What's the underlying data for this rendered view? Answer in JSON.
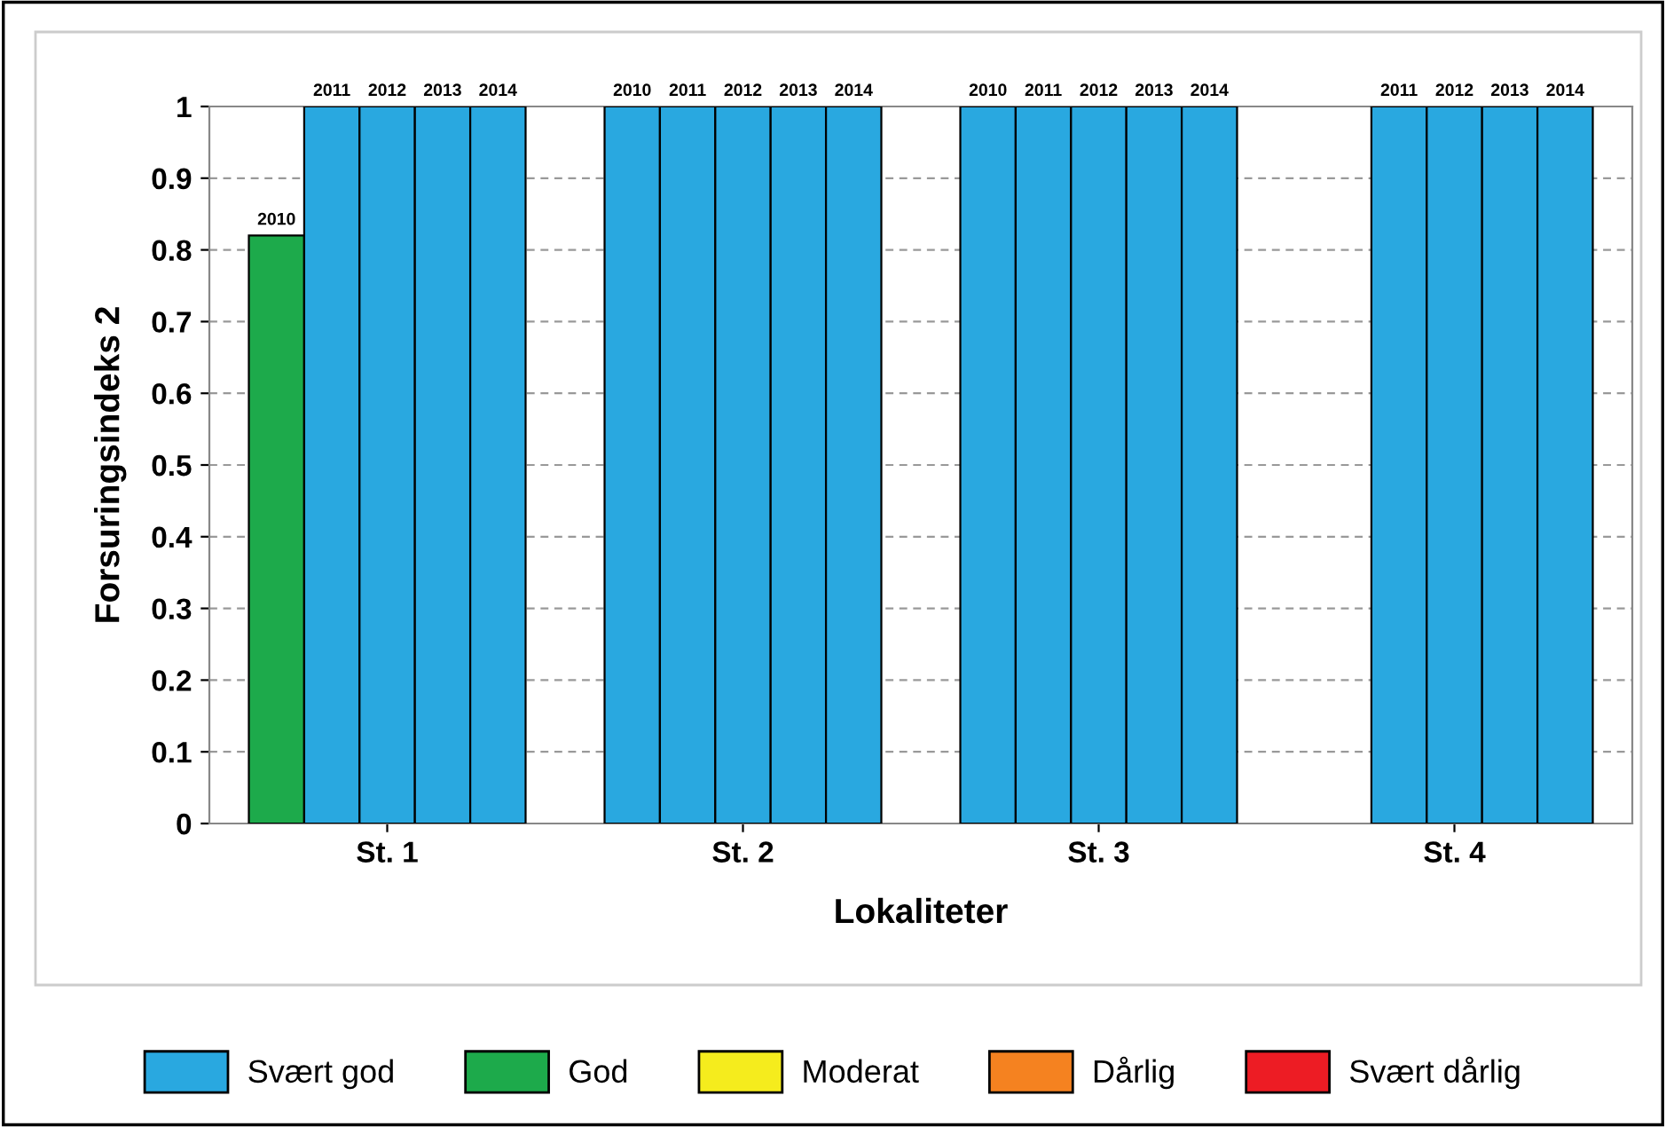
{
  "chart_data": {
    "type": "bar",
    "xlabel": "Lokaliteter",
    "ylabel": "Forsuringsindeks 2",
    "categories": [
      "St. 1",
      "St. 2",
      "St. 3",
      "St. 4"
    ],
    "series": [
      {
        "name": "2010",
        "colors": [
          "#1daa4b",
          "#29a8e0",
          "#29a8e0",
          "#29a8e0"
        ],
        "values": [
          0.82,
          1,
          1,
          null
        ]
      },
      {
        "name": "2011",
        "color": "#29a8e0",
        "values": [
          1,
          1,
          1,
          1
        ]
      },
      {
        "name": "2012",
        "color": "#29a8e0",
        "values": [
          1,
          1,
          1,
          1
        ]
      },
      {
        "name": "2013",
        "color": "#29a8e0",
        "values": [
          1,
          1,
          1,
          1
        ]
      },
      {
        "name": "2014",
        "color": "#29a8e0",
        "values": [
          1,
          1,
          1,
          1
        ]
      },
      {
        "name": "Svært god",
        "color": "#29a8e0",
        "values": [
          null,
          null,
          null,
          null
        ]
      },
      {
        "name": "God",
        "color": "#1daa4b",
        "values": [
          null,
          null,
          null,
          null
        ]
      },
      {
        "name": "Moderat",
        "color": "#f5ec1d",
        "values": [
          null,
          null,
          null,
          null
        ]
      },
      {
        "name": "Dårlig",
        "color": "#f58220",
        "values": [
          null,
          null,
          null,
          null
        ]
      },
      {
        "name": "Svært dårlig",
        "color": "#ed1c24",
        "values": [
          null,
          null,
          null,
          null
        ]
      }
    ],
    "ylim": [
      0,
      1
    ],
    "yticks": [
      0,
      0.1,
      0.2,
      0.3,
      0.4,
      0.5,
      0.6,
      0.7,
      0.8,
      0.9,
      1
    ],
    "grid": "y",
    "legend": "bottom"
  }
}
